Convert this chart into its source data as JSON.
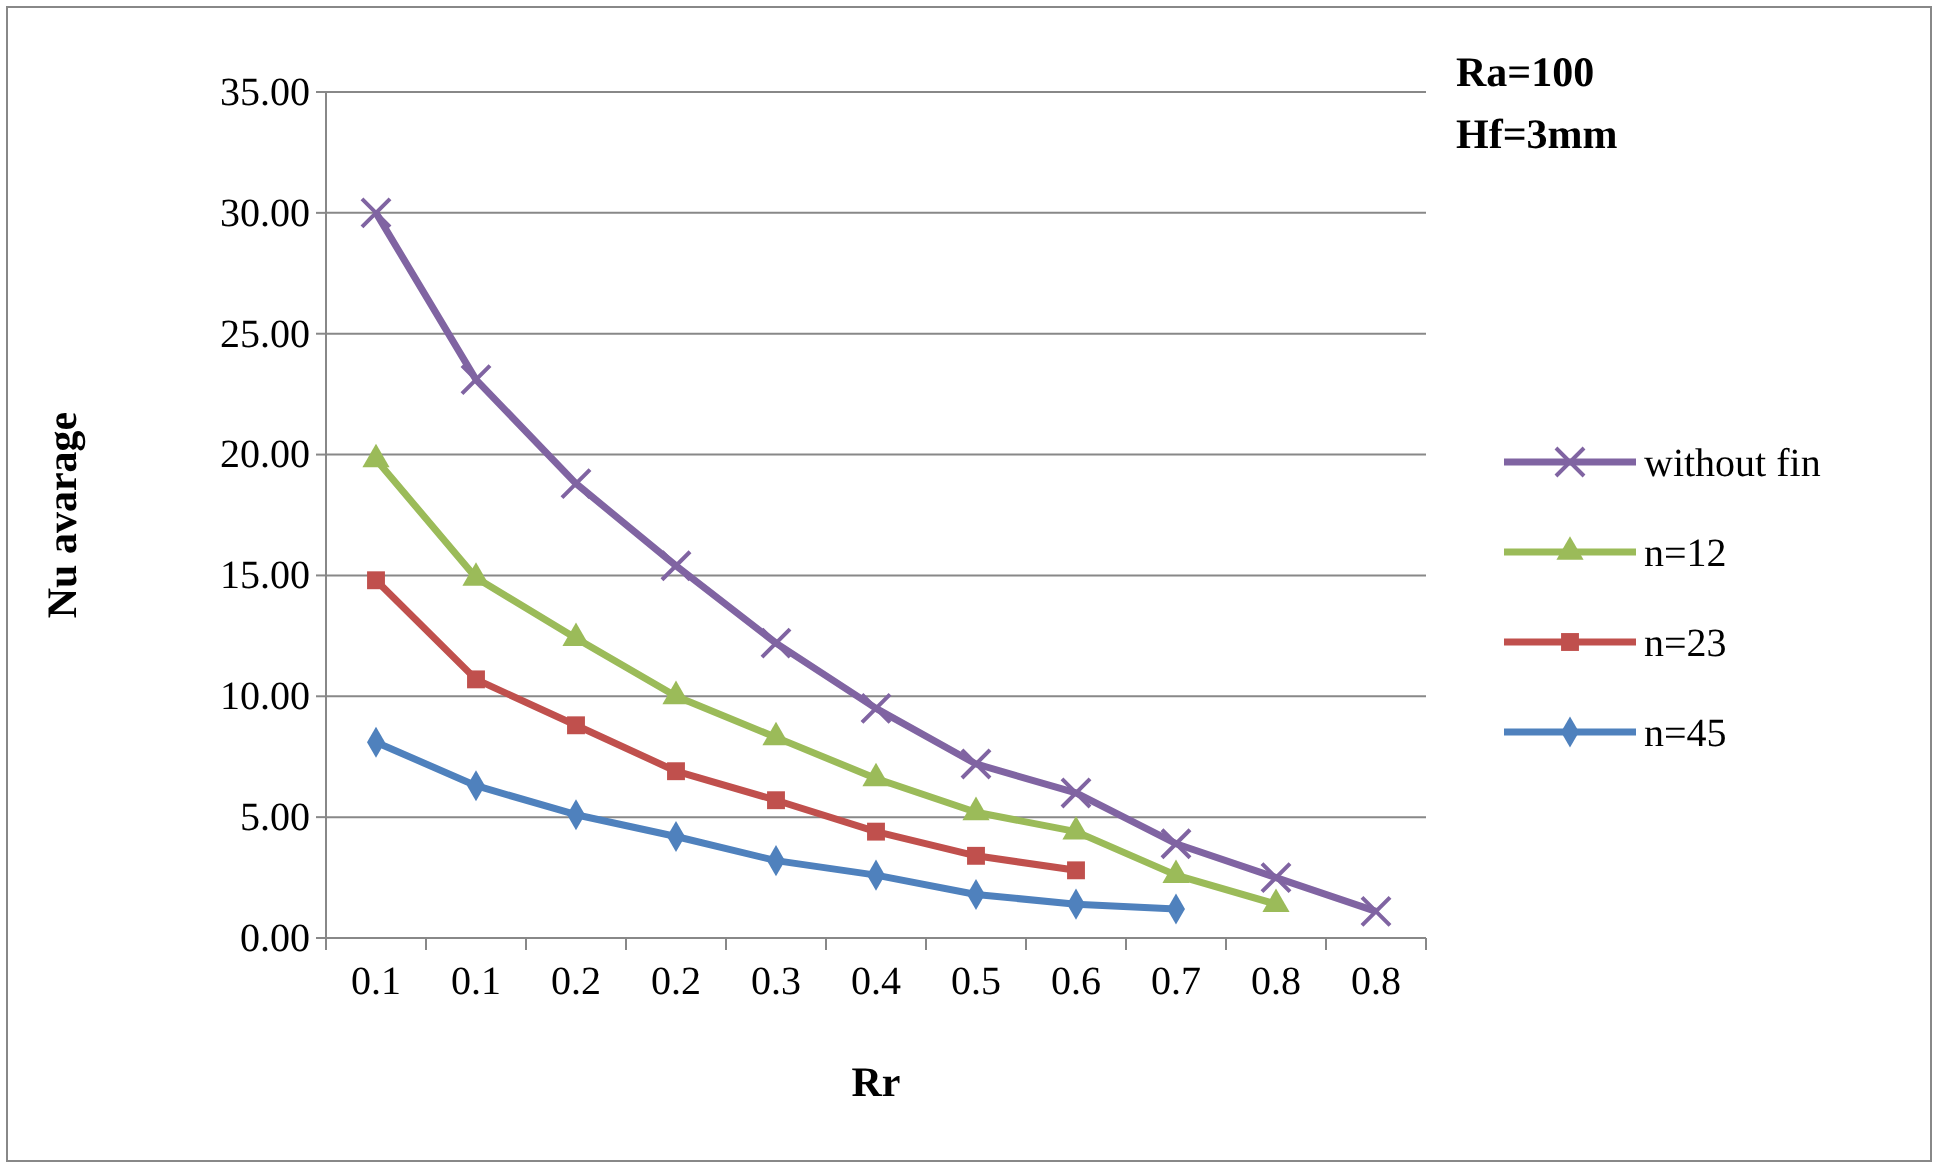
{
  "chart_data": {
    "type": "line",
    "xlabel": "Rr",
    "ylabel": "Nu avarage",
    "annotations": [
      "Ra=100",
      "Hf=3mm"
    ],
    "categories": [
      "0.1",
      "0.1",
      "0.2",
      "0.2",
      "0.3",
      "0.4",
      "0.5",
      "0.6",
      "0.7",
      "0.8",
      "0.8"
    ],
    "ylim": [
      0,
      35
    ],
    "yticks": [
      {
        "value": 0,
        "label": "0.00"
      },
      {
        "value": 5,
        "label": "5.00"
      },
      {
        "value": 10,
        "label": "10.00"
      },
      {
        "value": 15,
        "label": "15.00"
      },
      {
        "value": 20,
        "label": "20.00"
      },
      {
        "value": 25,
        "label": "25.00"
      },
      {
        "value": 30,
        "label": "30.00"
      },
      {
        "value": 35,
        "label": "35.00"
      }
    ],
    "grid": "y",
    "legend": "right",
    "line_style": "solid",
    "series": [
      {
        "name": "without fin",
        "color": "#8064a2",
        "marker": "cross",
        "values": [
          30.0,
          23.1,
          18.8,
          15.4,
          12.2,
          9.5,
          7.2,
          6.0,
          3.9,
          2.5,
          1.1
        ]
      },
      {
        "name": "n=12",
        "color": "#9bbb59",
        "marker": "triangle",
        "values": [
          19.8,
          14.9,
          12.4,
          10.0,
          8.3,
          6.6,
          5.2,
          4.4,
          2.6,
          1.4,
          null
        ]
      },
      {
        "name": "n=23",
        "color": "#c0504d",
        "marker": "square",
        "values": [
          14.8,
          10.7,
          8.8,
          6.9,
          5.7,
          4.4,
          3.4,
          2.8,
          null,
          null,
          null
        ]
      },
      {
        "name": "n=45",
        "color": "#4f81bd",
        "marker": "diamond",
        "values": [
          8.1,
          6.3,
          5.1,
          4.2,
          3.2,
          2.6,
          1.8,
          1.4,
          1.2,
          null,
          null
        ]
      }
    ]
  }
}
